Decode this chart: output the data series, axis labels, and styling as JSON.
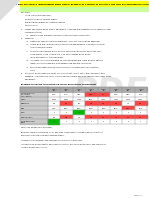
{
  "header_bg": "#FFFF00",
  "header2_bg": "#CCFF99",
  "page_bg": "#FFFFFF",
  "table_title": "Example of a matrix to prioritise the line for performance Improvement",
  "col_headers": [
    "",
    "Line 1\nR-N",
    "Line 2\nR-N",
    "Line 3\nC-B",
    "Line 4\nC-B",
    "Line 5\nC-B",
    "Line 6\nR-N",
    "Line 7\nR-N",
    "Line 8\nR-N"
  ],
  "row_headers": [
    "Customer Service /\nOT - OTIFNE\n(last 3 months)",
    "Volume",
    "Performance",
    "Scrap",
    "Safety",
    "OEE Completion",
    "Focus Improvement\nPriority"
  ],
  "table_data": [
    [
      "99.2%",
      "97.7%",
      "100%",
      "97.5%",
      "99%",
      "99.2%",
      "99.7%",
      "99.2%"
    ],
    [
      "45,000",
      "38,000",
      "44,000",
      "5,310",
      "12,000",
      "10,000",
      "10,000",
      "10,000"
    ],
    [
      "88%",
      "80%",
      "81%",
      "68%",
      "63%",
      "68%",
      "75%",
      "65%"
    ],
    [
      "0.84%",
      "0.72%",
      "0.72%",
      "0.71%",
      "0.76%",
      "0.67%",
      "1.06%",
      "0.71%"
    ],
    [
      "3",
      "3",
      "4",
      "3",
      "3",
      "3",
      "3",
      "3"
    ],
    [
      "85%",
      "67%",
      "79%",
      "66%",
      "62%",
      "66%",
      "69%",
      "64%"
    ],
    [
      "1",
      "4",
      "2",
      "3",
      "5",
      "8",
      "6",
      "7"
    ]
  ],
  "cell_colors": [
    [
      "#FFFFFF",
      "#FFFFFF",
      "#FFFFFF",
      "#FF4444",
      "#FF4444",
      "#FFFFFF",
      "#FFFFFF",
      "#FFFFFF"
    ],
    [
      "#FFFFFF",
      "#FFFFFF",
      "#FFFFFF",
      "#FFFFFF",
      "#FFFFFF",
      "#FFFFFF",
      "#FFFFFF",
      "#FFFFFF"
    ],
    [
      "#FFFFFF",
      "#FF4444",
      "#FFFFFF",
      "#FF4444",
      "#FF4444",
      "#FF4444",
      "#FFFFFF",
      "#FF4444"
    ],
    [
      "#FFFFFF",
      "#FFFFFF",
      "#FFFFFF",
      "#FFFFFF",
      "#FFFFFF",
      "#FFFFFF",
      "#FF4444",
      "#FFFFFF"
    ],
    [
      "#FFFFFF",
      "#FFFFFF",
      "#00BB00",
      "#FFFFFF",
      "#FFFFFF",
      "#FFFFFF",
      "#FFFFFF",
      "#FFFFFF"
    ],
    [
      "#FFFFFF",
      "#FF4444",
      "#FFFFFF",
      "#FF4444",
      "#FF4444",
      "#FF4444",
      "#FF4444",
      "#FF4444"
    ],
    [
      "#00BB00",
      "#FFFFFF",
      "#FFFFFF",
      "#FFFFFF",
      "#FFFFFF",
      "#FFFFFF",
      "#FFFFFF",
      "#FFFFFF"
    ]
  ],
  "body_lines": [
    [
      "Key Note:",
      false,
      0
    ],
    [
      "Allow the correct boundary",
      false,
      4
    ],
    [
      "Select the highest volume activity",
      false,
      4
    ],
    [
      "the Biological impact on customer metrics",
      false,
      4
    ],
    [
      "to focus on it.",
      false,
      4
    ],
    [
      "1.   Assess and record which area of equipment is causing the biggest problem (based on real",
      false,
      0
    ],
    [
      "      customer criteria).",
      false,
      0
    ],
    [
      "         a.   Work through the Basics equipment to prioritise the work Rate.",
      false,
      0
    ],
    [
      "2.   Standard:",
      false,
      0
    ],
    [
      "         a.   Determine condition of the equipment - carry out the condition appraisal",
      false,
      0
    ],
    [
      "         b.   Check what the ranking place on the line of equipment is in addition consider",
      false,
      0
    ],
    [
      "               and review spare parts.",
      false,
      0
    ],
    [
      "         c.   Check the appropriate filters to carry out a calibrate and to select the right",
      false,
      0
    ],
    [
      "               components found in room this is so as to identify which prime",
      false,
      0
    ],
    [
      "               more frequently of the equipment.",
      false,
      0
    ],
    [
      "         d.   Ask what cleaning is available on the equipment and check primary options",
      false,
      0
    ],
    [
      "               what cleaning schedule is most established and the core range.",
      false,
      0
    ],
    [
      "         e.   Ensure lubrication schedule is placed for the equipment and review the",
      false,
      0
    ],
    [
      "               data.",
      false,
      0
    ],
    [
      "3.   If the First Point Shifting is a part or it is short but correct out of the component and",
      false,
      0
    ],
    [
      "      essential. The relation is safety in place specify a place and also general cleanliness of the",
      false,
      0
    ],
    [
      "      equipment.",
      false,
      0
    ]
  ],
  "footer_lines": [
    "Which line do we pick to start with?",
    "",
    "Based on overall performance, Line 1 and 3 the lowest continuous metric (85%), current line",
    "performance of OEE completion showing at 85%.",
    "",
    "However line 5 has weekly over less than Line 1 metrics to the below.",
    "",
    "Also why is line 6 having better performance, a further discussion due to higher OEE completion",
    "levels of around 66% in 2021."
  ],
  "page_footer": "Page 2 of 3"
}
